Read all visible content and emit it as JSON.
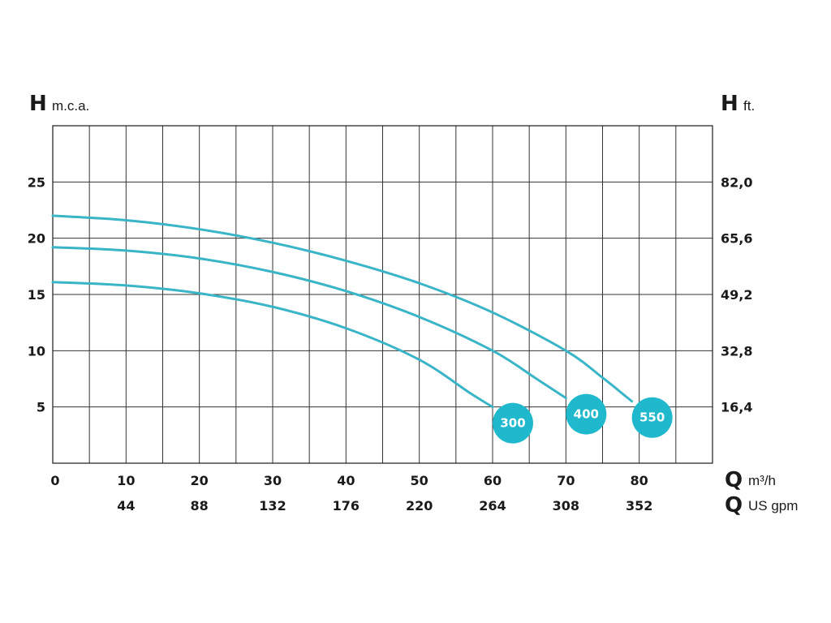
{
  "chart_data": {
    "type": "line",
    "axes": {
      "left": {
        "letter": "H",
        "unit": "m.c.a.",
        "ticks": [
          5,
          10,
          15,
          20,
          25
        ],
        "range": [
          0,
          30
        ]
      },
      "right": {
        "letter": "H",
        "unit": "ft.",
        "ticks": [
          "16,4",
          "32,8",
          "49,2",
          "65,6",
          "82,0"
        ]
      },
      "bottom_primary": {
        "letter": "Q",
        "unit": "m³/h",
        "ticks": [
          0,
          10,
          20,
          30,
          40,
          50,
          60,
          70,
          80
        ],
        "range": [
          0,
          90
        ]
      },
      "bottom_secondary": {
        "letter": "Q",
        "unit": "US gpm",
        "ticks": [
          "44",
          "88",
          "132",
          "176",
          "220",
          "264",
          "308",
          "352"
        ]
      }
    },
    "grid": true,
    "curve_color": "#3ab5c7",
    "badge_color": "#1fb8cc",
    "series": [
      {
        "name": "300",
        "x": [
          0,
          10,
          20,
          30,
          40,
          50,
          57,
          60
        ],
        "y": [
          16.1,
          15.8,
          15.1,
          13.9,
          12.0,
          9.2,
          6.2,
          5.0
        ]
      },
      {
        "name": "400",
        "x": [
          0,
          10,
          20,
          30,
          40,
          50,
          60,
          66,
          70
        ],
        "y": [
          19.2,
          18.9,
          18.2,
          17.0,
          15.3,
          13.0,
          10.0,
          7.5,
          5.8
        ]
      },
      {
        "name": "550",
        "x": [
          0,
          10,
          20,
          30,
          40,
          50,
          60,
          70,
          75,
          79
        ],
        "y": [
          22.0,
          21.6,
          20.8,
          19.6,
          18.0,
          16.0,
          13.4,
          10.0,
          7.6,
          5.5
        ]
      }
    ]
  }
}
